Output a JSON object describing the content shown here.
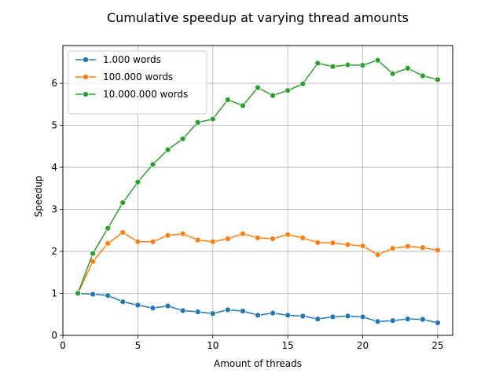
{
  "chart_data": {
    "type": "line",
    "title": "Cumulative speedup at varying thread amounts",
    "xlabel": "Amount of threads",
    "ylabel": "Speedup",
    "xlim": [
      0,
      26
    ],
    "ylim": [
      0,
      6.9
    ],
    "xticks": [
      0,
      5,
      10,
      15,
      20,
      25
    ],
    "yticks": [
      0,
      1,
      2,
      3,
      4,
      5,
      6
    ],
    "grid": true,
    "legend_position": "top-left",
    "x": [
      1,
      2,
      3,
      4,
      5,
      6,
      7,
      8,
      9,
      10,
      11,
      12,
      13,
      14,
      15,
      16,
      17,
      18,
      19,
      20,
      21,
      22,
      23,
      24,
      25
    ],
    "series": [
      {
        "name": "1.000 words",
        "color": "#1f77b4",
        "values": [
          1.0,
          0.98,
          0.95,
          0.8,
          0.72,
          0.65,
          0.7,
          0.59,
          0.56,
          0.52,
          0.61,
          0.58,
          0.48,
          0.53,
          0.48,
          0.46,
          0.39,
          0.44,
          0.46,
          0.44,
          0.33,
          0.35,
          0.39,
          0.38,
          0.3
        ]
      },
      {
        "name": "100.000 words",
        "color": "#ff7f0e",
        "values": [
          1.0,
          1.76,
          2.19,
          2.45,
          2.23,
          2.23,
          2.38,
          2.42,
          2.27,
          2.23,
          2.3,
          2.42,
          2.32,
          2.3,
          2.4,
          2.32,
          2.21,
          2.2,
          2.16,
          2.13,
          1.92,
          2.07,
          2.12,
          2.09,
          2.03
        ]
      },
      {
        "name": "10.000.000 words",
        "color": "#2ca02c",
        "values": [
          1.0,
          1.95,
          2.55,
          3.16,
          3.65,
          4.07,
          4.42,
          4.68,
          5.07,
          5.15,
          5.61,
          5.47,
          5.9,
          5.71,
          5.83,
          5.99,
          6.48,
          6.4,
          6.44,
          6.43,
          6.55,
          6.23,
          6.36,
          6.18,
          6.09
        ]
      }
    ]
  }
}
